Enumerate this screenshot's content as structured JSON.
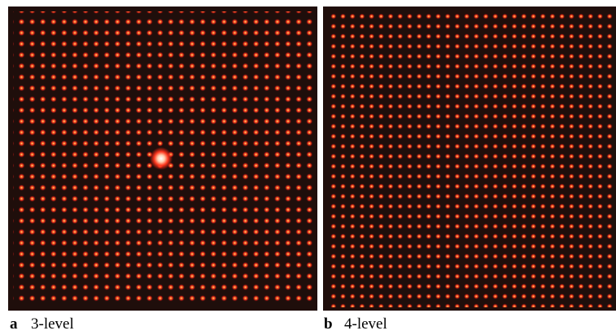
{
  "panels": [
    {
      "letter": "a",
      "caption": "3-level"
    },
    {
      "letter": "b",
      "caption": "4-level"
    }
  ]
}
